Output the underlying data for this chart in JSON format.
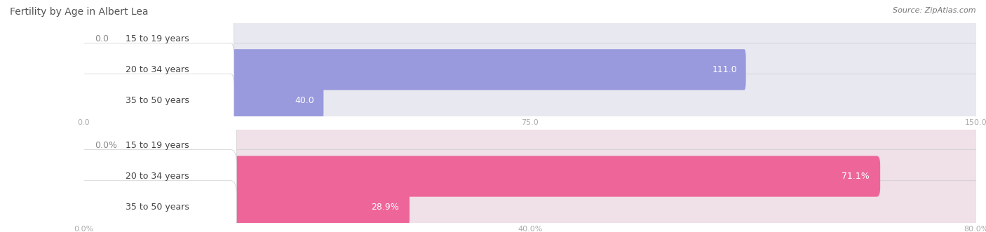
{
  "title": "Fertility by Age in Albert Lea",
  "source": "Source: ZipAtlas.com",
  "top_chart": {
    "categories": [
      "15 to 19 years",
      "20 to 34 years",
      "35 to 50 years"
    ],
    "values": [
      0.0,
      111.0,
      40.0
    ],
    "xlim": [
      0,
      150.0
    ],
    "xticks": [
      0.0,
      75.0,
      150.0
    ],
    "xtick_labels": [
      "0.0",
      "75.0",
      "150.0"
    ],
    "bar_color": "#9999dd",
    "bar_bg_color": "#e8e8f0",
    "label_cap_color": "#ffffff",
    "value_labels": [
      "0.0",
      "111.0",
      "40.0"
    ]
  },
  "bottom_chart": {
    "categories": [
      "15 to 19 years",
      "20 to 34 years",
      "35 to 50 years"
    ],
    "values": [
      0.0,
      71.1,
      28.9
    ],
    "xlim": [
      0,
      80.0
    ],
    "xticks": [
      0.0,
      40.0,
      80.0
    ],
    "xtick_labels": [
      "0.0%",
      "40.0%",
      "80.0%"
    ],
    "bar_color": "#ee6699",
    "bar_bg_color": "#f0e0e8",
    "label_cap_color": "#ffffff",
    "value_labels": [
      "0.0%",
      "71.1%",
      "28.9%"
    ]
  },
  "background_color": "#ffffff",
  "title_fontsize": 10,
  "source_fontsize": 8,
  "label_fontsize": 9,
  "tick_fontsize": 8,
  "title_color": "#555555",
  "source_color": "#777777",
  "tick_color": "#aaaaaa",
  "grid_color": "#dddddd",
  "cat_label_color": "#444444",
  "value_label_color_inside": "#ffffff",
  "value_label_color_outside": "#888888"
}
